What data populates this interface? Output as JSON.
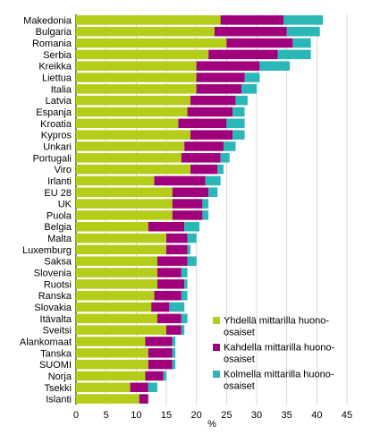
{
  "chart_data": {
    "type": "bar",
    "orientation": "horizontal",
    "stacked": true,
    "categories": [
      "Makedonia",
      "Bulgaria",
      "Romania",
      "Serbia",
      "Kreikka",
      "Liettua",
      "Italia",
      "Latvia",
      "Espanja",
      "Kroatia",
      "Kypros",
      "Unkari",
      "Portugali",
      "Viro",
      "Irlanti",
      "EU 28",
      "UK",
      "Puola",
      "Belgia",
      "Malta",
      "Luxemburg",
      "Saksa",
      "Slovenia",
      "Ruotsi",
      "Ranska",
      "Slovakia",
      "Itävalta",
      "Sveitsi",
      "Alankomaat",
      "Tanska",
      "SUOMI",
      "Norja",
      "Tsekki",
      "Islanti"
    ],
    "series": [
      {
        "name": "Yhdellä mittarilla huono-osaiset",
        "color": "#b5cc18",
        "values": [
          24,
          23,
          25,
          22,
          20,
          20,
          20,
          19,
          18.5,
          17,
          19,
          18,
          17.5,
          19,
          13,
          16,
          16,
          16,
          12,
          15,
          15,
          13.5,
          13.5,
          13.5,
          13,
          12.5,
          13.5,
          15,
          11.5,
          12,
          12,
          11.5,
          9,
          10.5
        ]
      },
      {
        "name": "Kahdella mittarilla huono-osaiset",
        "color": "#a0007c",
        "values": [
          10.5,
          12,
          11,
          11.5,
          10.5,
          8,
          7.5,
          7.5,
          7.5,
          8,
          7,
          6.5,
          6.5,
          4.5,
          8.5,
          6,
          5,
          5,
          6,
          3.5,
          3.5,
          5,
          4,
          4.5,
          4.5,
          3,
          4,
          2.5,
          4.5,
          4,
          4,
          3,
          3,
          1.5
        ]
      },
      {
        "name": "Kolmella mittarilla huono-osaiset",
        "color": "#2ab7b7",
        "values": [
          6.5,
          5.5,
          3,
          5.5,
          5,
          2.5,
          2.5,
          2,
          2,
          3,
          2,
          2,
          1.5,
          1,
          2.5,
          1.5,
          1,
          1,
          2.5,
          1.5,
          0.5,
          1.5,
          1,
          0.5,
          1,
          2.5,
          1,
          0.5,
          0.5,
          0.5,
          0.5,
          0.5,
          1.5,
          0
        ]
      }
    ],
    "xlabel": "%",
    "xlim": [
      0,
      45
    ],
    "xticks": [
      0,
      5,
      10,
      15,
      20,
      25,
      30,
      35,
      40,
      45
    ],
    "grid": "vertical",
    "legend_position": "bottom-right"
  }
}
